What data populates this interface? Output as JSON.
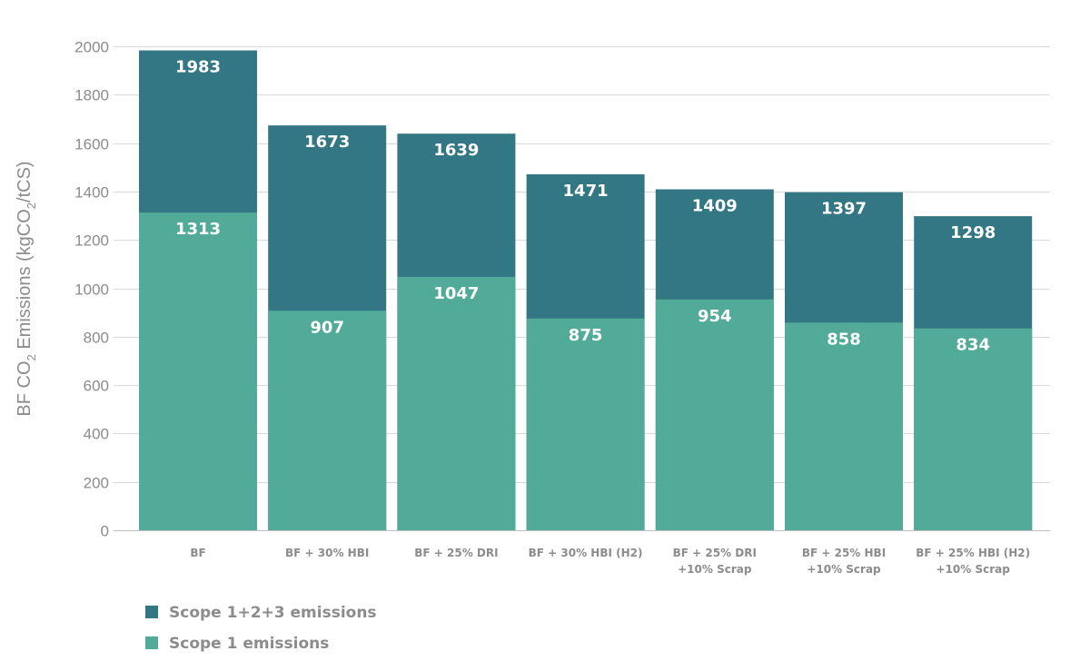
{
  "chart_data": {
    "type": "bar",
    "layout": "overlapped",
    "categories": [
      [
        "BF"
      ],
      [
        "BF + 30% HBI"
      ],
      [
        "BF + 25% DRI"
      ],
      [
        "BF + 30% HBI (H2)"
      ],
      [
        "BF + 25% DRI",
        "+10% Scrap"
      ],
      [
        "BF + 25% HBI",
        "+10% Scrap"
      ],
      [
        "BF + 25% HBI (H2)",
        "+10% Scrap"
      ]
    ],
    "series": [
      {
        "name": "Scope 1+2+3 emissions",
        "color": "#347784",
        "values": [
          1983,
          1673,
          1639,
          1471,
          1409,
          1397,
          1298
        ]
      },
      {
        "name": "Scope 1 emissions",
        "color": "#52ab98",
        "values": [
          1313,
          907,
          1047,
          875,
          954,
          858,
          834
        ]
      }
    ],
    "ylabel": {
      "prefix": "BF CO",
      "sub": "2",
      "middle": " Emissions (kgCO",
      "sub2": "2",
      "suffix": "/tCS)"
    },
    "ylim": [
      0,
      2000
    ],
    "yticks": [
      0,
      200,
      400,
      600,
      800,
      1000,
      1200,
      1400,
      1600,
      1800,
      2000
    ],
    "grid": true,
    "legend_position": "bottom-left"
  }
}
